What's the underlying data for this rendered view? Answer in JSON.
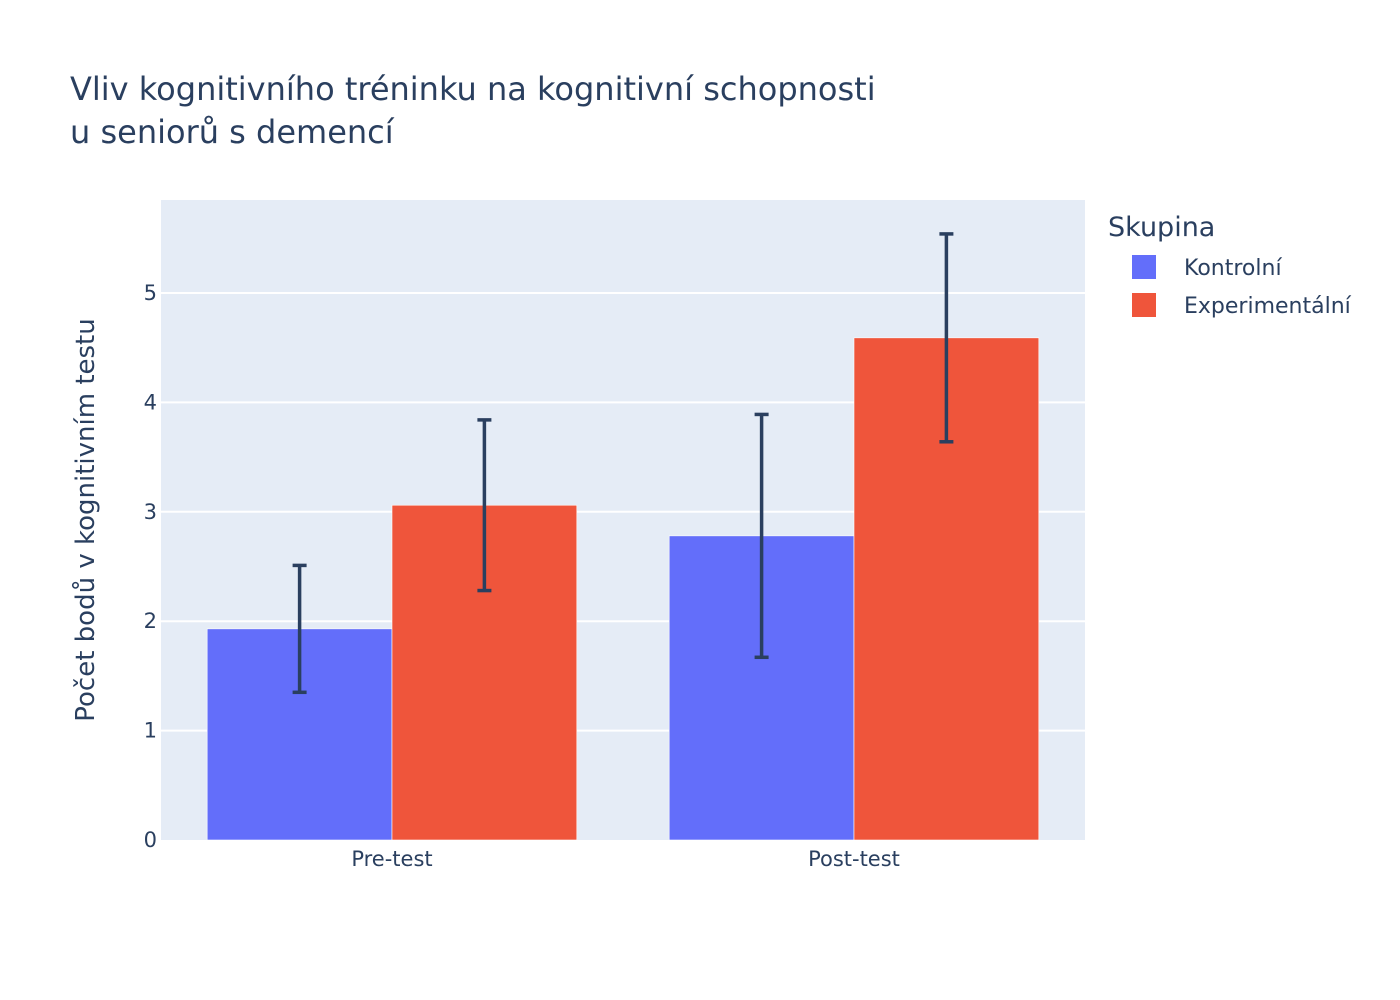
{
  "chart_data": {
    "type": "bar",
    "title_lines": [
      "Vliv kognitivního tréninku na kognitivní schopnosti",
      "u seniorů s demencí"
    ],
    "xlabel": "",
    "ylabel": "Počet bodů v kognitivním testu",
    "categories": [
      "Pre-test",
      "Post-test"
    ],
    "series": [
      {
        "name": "Kontrolní",
        "color": "#636efa",
        "values": [
          1.93,
          2.78
        ],
        "error_minus": [
          0.58,
          1.11
        ],
        "error_plus": [
          0.58,
          1.11
        ]
      },
      {
        "name": "Experimentální",
        "color": "#ef553b",
        "values": [
          3.06,
          4.59
        ],
        "error_minus": [
          0.78,
          0.95
        ],
        "error_plus": [
          0.78,
          0.95
        ]
      }
    ],
    "ylim": [
      0,
      5.85
    ],
    "yticks": [
      0,
      1,
      2,
      3,
      4,
      5
    ],
    "grid": true,
    "plot_background": "#e5ecf6",
    "error_bar_color": "#2a3f5f",
    "legend": {
      "title": "Skupina",
      "placement": "right"
    }
  }
}
